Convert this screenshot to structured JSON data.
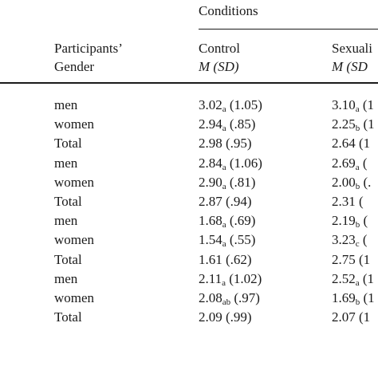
{
  "header": {
    "conditions_label": "Conditions",
    "participants_line1": "Participants’",
    "participants_line2": "Gender",
    "columns": [
      {
        "label": "Control",
        "stat": "M (SD)"
      },
      {
        "label": "Sexuali",
        "stat": "M (SD"
      }
    ]
  },
  "rows": [
    {
      "gender": "men",
      "control": {
        "mean": "3.02",
        "sub": "a",
        "sd": "(1.05)"
      },
      "sexual": {
        "mean": "3.10",
        "sub": "a",
        "sd": "(1"
      }
    },
    {
      "gender": "women",
      "control": {
        "mean": "2.94",
        "sub": "a",
        "sd": "(.85)"
      },
      "sexual": {
        "mean": "2.25",
        "sub": "b",
        "sd": "(1"
      }
    },
    {
      "gender": "Total",
      "control": {
        "mean": "2.98",
        "sub": "",
        "sd": "(.95)"
      },
      "sexual": {
        "mean": "2.64",
        "sub": "",
        "sd": "(1"
      }
    },
    {
      "gender": "men",
      "control": {
        "mean": "2.84",
        "sub": "a",
        "sd": "(1.06)"
      },
      "sexual": {
        "mean": "2.69",
        "sub": "a",
        "sd": "("
      }
    },
    {
      "gender": "women",
      "control": {
        "mean": "2.90",
        "sub": "a",
        "sd": "(.81)"
      },
      "sexual": {
        "mean": "2.00",
        "sub": "b",
        "sd": "(."
      }
    },
    {
      "gender": "Total",
      "control": {
        "mean": "2.87",
        "sub": "",
        "sd": "(.94)"
      },
      "sexual": {
        "mean": "2.31",
        "sub": "",
        "sd": "("
      }
    },
    {
      "gender": "men",
      "control": {
        "mean": "1.68",
        "sub": "a",
        "sd": "(.69)"
      },
      "sexual": {
        "mean": "2.19",
        "sub": "b",
        "sd": "("
      }
    },
    {
      "gender": "women",
      "control": {
        "mean": "1.54",
        "sub": "a",
        "sd": "(.55)"
      },
      "sexual": {
        "mean": "3.23",
        "sub": "c",
        "sd": "("
      }
    },
    {
      "gender": "Total",
      "control": {
        "mean": "1.61",
        "sub": "",
        "sd": "(.62)"
      },
      "sexual": {
        "mean": "2.75",
        "sub": "",
        "sd": "(1"
      }
    },
    {
      "gender": "men",
      "control": {
        "mean": "2.11",
        "sub": "a",
        "sd": "(1.02)"
      },
      "sexual": {
        "mean": "2.52",
        "sub": "a",
        "sd": "(1"
      }
    },
    {
      "gender": "women",
      "control": {
        "mean": "2.08",
        "sub": "ab",
        "sd": "(.97)"
      },
      "sexual": {
        "mean": "1.69",
        "sub": "b",
        "sd": "(1"
      }
    },
    {
      "gender": "Total",
      "control": {
        "mean": "2.09",
        "sub": "",
        "sd": "(.99)"
      },
      "sexual": {
        "mean": "2.07",
        "sub": "",
        "sd": "(1"
      }
    }
  ]
}
